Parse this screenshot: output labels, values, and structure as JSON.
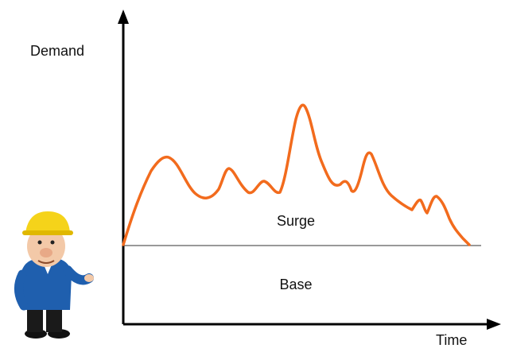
{
  "axes": {
    "y_label": "Demand",
    "x_label": "Time"
  },
  "regions": {
    "upper": "Surge",
    "lower": "Base"
  }
}
